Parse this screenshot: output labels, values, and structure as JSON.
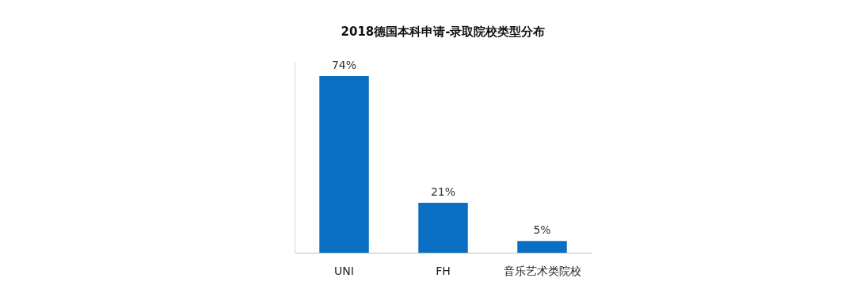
{
  "chart_data": {
    "type": "bar",
    "title": "2018德国本科申请-录取院校类型分布",
    "categories": [
      "UNI",
      "FH",
      "音乐艺术类院校"
    ],
    "values": [
      74,
      21,
      5
    ],
    "value_labels": [
      "74%",
      "21%",
      "5%"
    ],
    "color": "#0a6fc2",
    "ylim": [
      0,
      80
    ],
    "grid": false,
    "data_labels": true,
    "tick_labels": "x"
  }
}
